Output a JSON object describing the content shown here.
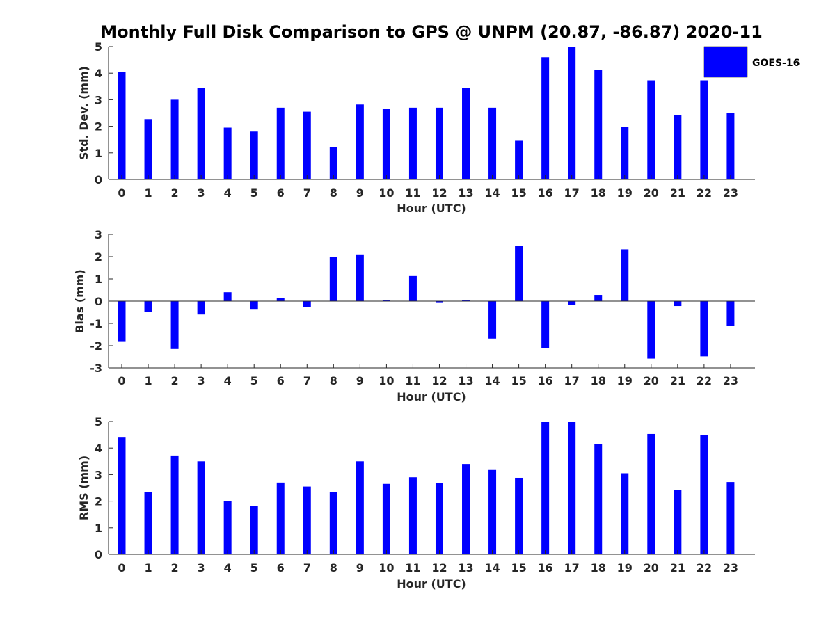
{
  "figure_title": "Monthly Full Disk Comparison to GPS @ UNPM (20.87, -86.87) 2020-11",
  "legend": {
    "label": "GOES-16",
    "color": "#0000ff"
  },
  "bar_color": "#0000ff",
  "chart_data": [
    {
      "type": "bar",
      "xlabel": "Hour (UTC)",
      "ylabel": "Std. Dev. (mm)",
      "categories": [
        "0",
        "1",
        "2",
        "3",
        "4",
        "5",
        "6",
        "7",
        "8",
        "9",
        "10",
        "11",
        "12",
        "13",
        "14",
        "15",
        "16",
        "17",
        "18",
        "19",
        "20",
        "21",
        "22",
        "23"
      ],
      "values": [
        4.05,
        2.27,
        3.0,
        3.45,
        1.95,
        1.8,
        2.7,
        2.55,
        1.22,
        2.82,
        2.65,
        2.7,
        2.7,
        3.43,
        2.7,
        1.48,
        4.6,
        5.0,
        4.13,
        1.98,
        3.73,
        2.43,
        3.73,
        2.5
      ],
      "ylim": [
        0,
        5
      ],
      "yticks": [
        0,
        1,
        2,
        3,
        4,
        5
      ],
      "grid": false
    },
    {
      "type": "bar",
      "xlabel": "Hour (UTC)",
      "ylabel": "Bias (mm)",
      "categories": [
        "0",
        "1",
        "2",
        "3",
        "4",
        "5",
        "6",
        "7",
        "8",
        "9",
        "10",
        "11",
        "12",
        "13",
        "14",
        "15",
        "16",
        "17",
        "18",
        "19",
        "20",
        "21",
        "22",
        "23"
      ],
      "values": [
        -1.8,
        -0.5,
        -2.15,
        -0.6,
        0.4,
        -0.35,
        0.15,
        -0.28,
        2.0,
        2.1,
        0.03,
        1.13,
        -0.05,
        0.03,
        -1.68,
        2.48,
        -2.12,
        -0.18,
        0.28,
        2.33,
        -2.58,
        -0.22,
        -2.48,
        -1.1
      ],
      "ylim": [
        -3,
        3
      ],
      "yticks": [
        -3,
        -2,
        -1,
        0,
        1,
        2,
        3
      ],
      "grid": false
    },
    {
      "type": "bar",
      "xlabel": "Hour (UTC)",
      "ylabel": "RMS (mm)",
      "categories": [
        "0",
        "1",
        "2",
        "3",
        "4",
        "5",
        "6",
        "7",
        "8",
        "9",
        "10",
        "11",
        "12",
        "13",
        "14",
        "15",
        "16",
        "17",
        "18",
        "19",
        "20",
        "21",
        "22",
        "23"
      ],
      "values": [
        4.42,
        2.33,
        3.72,
        3.5,
        2.0,
        1.83,
        2.7,
        2.55,
        2.33,
        3.5,
        2.65,
        2.9,
        2.68,
        3.4,
        3.2,
        2.88,
        5.0,
        5.0,
        4.15,
        3.05,
        4.53,
        2.43,
        4.48,
        2.72
      ],
      "ylim": [
        0,
        5
      ],
      "yticks": [
        0,
        1,
        2,
        3,
        4,
        5
      ],
      "grid": false
    }
  ]
}
